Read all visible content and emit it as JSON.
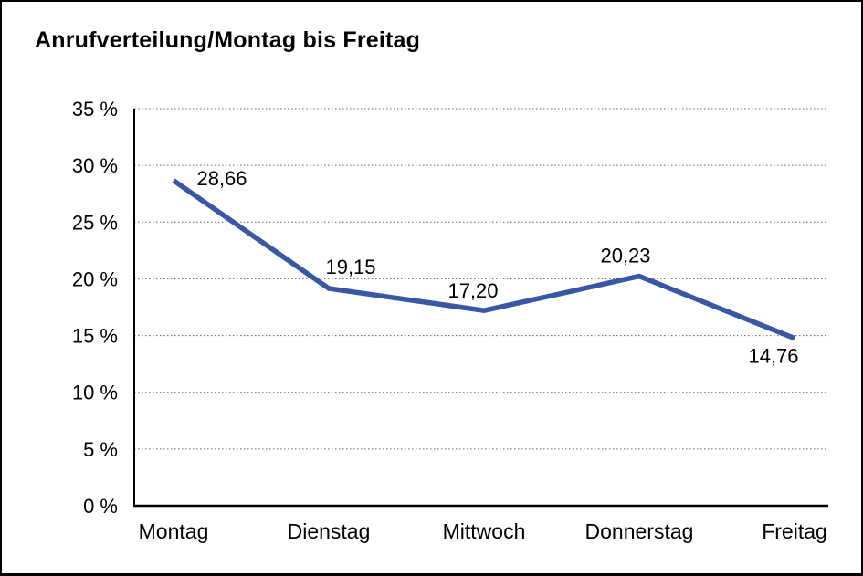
{
  "window": {
    "background": "#FFFFFF",
    "border_color": "#000000"
  },
  "chart_data": {
    "type": "line",
    "title": "Anrufverteilung/Montag bis Freitag",
    "categories": [
      "Montag",
      "Dienstag",
      "Mittwoch",
      "Donnerstag",
      "Freitag"
    ],
    "series": [
      {
        "name": "Anrufverteilung",
        "values": [
          28.66,
          19.15,
          17.2,
          20.23,
          14.76
        ],
        "point_labels": [
          "28,66",
          "19,15",
          "17,20",
          "20,23",
          "14,76"
        ]
      }
    ],
    "xlabel": "",
    "ylabel": "",
    "ylim": [
      0,
      35
    ],
    "ytick_step": 5,
    "ytick_labels": [
      "0 %",
      "5 %",
      "10 %",
      "15 %",
      "20 %",
      "25 %",
      "30 %",
      "35 %"
    ],
    "grid": "horizontal-dotted",
    "legend_position": "none",
    "colors": {
      "line": "#3A57A3",
      "grid": "#666666",
      "axis": "#000000",
      "text": "#000000"
    }
  }
}
